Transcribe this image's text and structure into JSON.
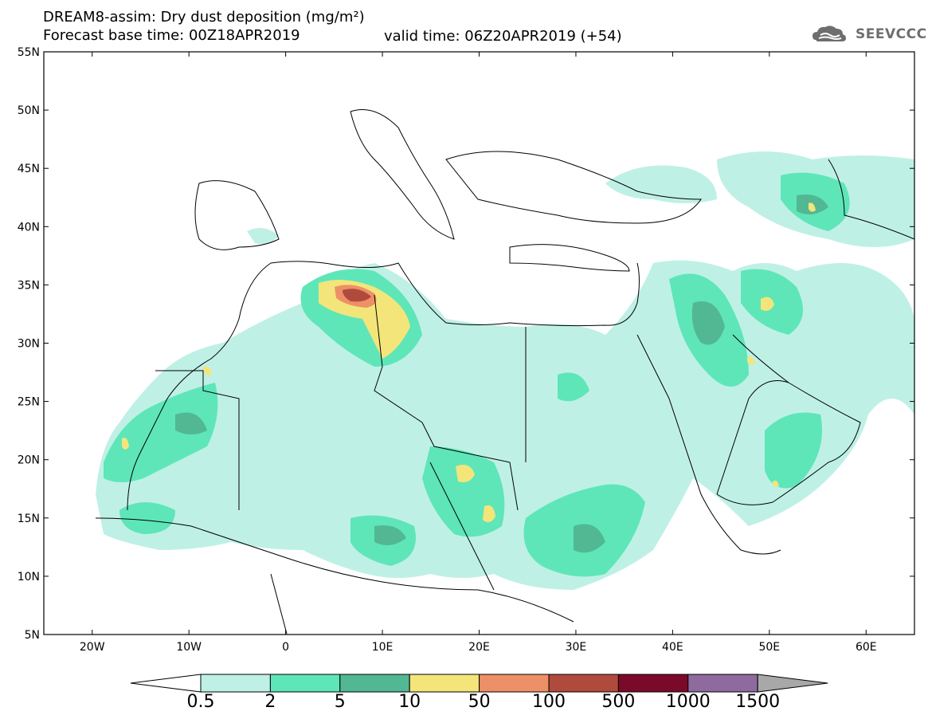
{
  "header": {
    "title_line1": "DREAM8-assim: Dry dust deposition (mg/m²)",
    "title_line2_left": "Forecast base time: 00Z18APR2019",
    "title_line2_right": "valid time: 06Z20APR2019 (+54)"
  },
  "logo": {
    "text": "SEEVCCC",
    "icon": "cloud-icon"
  },
  "axes": {
    "lat_labels": [
      "55N",
      "50N",
      "45N",
      "40N",
      "35N",
      "30N",
      "25N",
      "20N",
      "15N",
      "10N",
      "5N"
    ],
    "lon_labels": [
      "20W",
      "10W",
      "0",
      "10E",
      "20E",
      "30E",
      "40E",
      "50E",
      "60E"
    ],
    "lat_values": [
      55,
      50,
      45,
      40,
      35,
      30,
      25,
      20,
      15,
      10,
      5
    ],
    "lon_values": [
      -20,
      -10,
      0,
      10,
      20,
      30,
      40,
      50,
      60
    ],
    "lat_range": [
      5,
      55
    ],
    "lon_range": [
      -25,
      65
    ]
  },
  "colorbar": {
    "labels": [
      "0.5",
      "2",
      "5",
      "10",
      "50",
      "100",
      "500",
      "1000",
      "1500"
    ],
    "colors": [
      "#bff0e6",
      "#5ee6b9",
      "#52b893",
      "#f3e57a",
      "#ee9067",
      "#b04a3c",
      "#7b0a2a",
      "#8f6a9e"
    ],
    "overflow_color": "#a8a8a8",
    "underflow_color": "#ffffff"
  }
}
